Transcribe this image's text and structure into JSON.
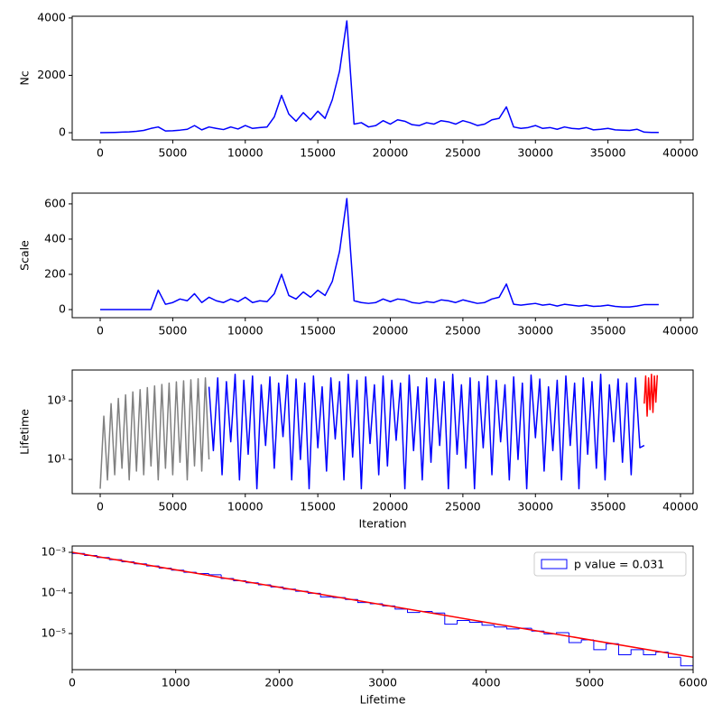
{
  "chart_data": [
    {
      "type": "line",
      "ylabel": "Nc",
      "xlim": [
        -1930,
        40870
      ],
      "ylim": [
        -250,
        4060
      ],
      "xticks": [
        0,
        5000,
        10000,
        15000,
        20000,
        25000,
        30000,
        35000,
        40000
      ],
      "yticks": [
        0,
        2000,
        4000
      ],
      "series": [
        {
          "color": "#0000ff",
          "x": [
            0,
            500,
            1000,
            1500,
            2000,
            2500,
            3000,
            3500,
            4000,
            4500,
            5000,
            5500,
            6000,
            6500,
            7000,
            7500,
            8000,
            8500,
            9000,
            9500,
            10000,
            10500,
            11000,
            11500,
            12000,
            12500,
            13000,
            13500,
            14000,
            14500,
            15000,
            15500,
            16000,
            16500,
            17000,
            17500,
            18000,
            18500,
            19000,
            19500,
            20000,
            20500,
            21000,
            21500,
            22000,
            22500,
            23000,
            23500,
            24000,
            24500,
            25000,
            25500,
            26000,
            26500,
            27000,
            27500,
            28000,
            28500,
            29000,
            29500,
            30000,
            30500,
            31000,
            31500,
            32000,
            32500,
            33000,
            33500,
            34000,
            34500,
            35000,
            35500,
            36000,
            36500,
            37000,
            37500,
            38000,
            38500
          ],
          "values": [
            0,
            5,
            10,
            20,
            30,
            50,
            80,
            150,
            200,
            60,
            70,
            90,
            120,
            250,
            100,
            200,
            150,
            110,
            200,
            130,
            250,
            150,
            180,
            200,
            550,
            1300,
            650,
            400,
            700,
            450,
            750,
            500,
            1150,
            2150,
            3900,
            300,
            350,
            200,
            250,
            420,
            300,
            450,
            400,
            280,
            250,
            350,
            300,
            420,
            380,
            300,
            420,
            350,
            250,
            300,
            450,
            500,
            900,
            200,
            150,
            180,
            250,
            150,
            180,
            120,
            200,
            150,
            130,
            180,
            100,
            120,
            150,
            100,
            90,
            80,
            120,
            20,
            10,
            10
          ]
        }
      ]
    },
    {
      "type": "line",
      "ylabel": "Scale",
      "xlim": [
        -1930,
        40870
      ],
      "ylim": [
        -46,
        661
      ],
      "xticks": [
        0,
        5000,
        10000,
        15000,
        20000,
        25000,
        30000,
        35000,
        40000
      ],
      "yticks": [
        0,
        200,
        400,
        600
      ],
      "series": [
        {
          "color": "#0000ff",
          "x": [
            0,
            500,
            1000,
            1500,
            2000,
            2500,
            3000,
            3500,
            4000,
            4500,
            5000,
            5500,
            6000,
            6500,
            7000,
            7500,
            8000,
            8500,
            9000,
            9500,
            10000,
            10500,
            11000,
            11500,
            12000,
            12500,
            13000,
            13500,
            14000,
            14500,
            15000,
            15500,
            16000,
            16500,
            17000,
            17500,
            18000,
            18500,
            19000,
            19500,
            20000,
            20500,
            21000,
            21500,
            22000,
            22500,
            23000,
            23500,
            24000,
            24500,
            25000,
            25500,
            26000,
            26500,
            27000,
            27500,
            28000,
            28500,
            29000,
            29500,
            30000,
            30500,
            31000,
            31500,
            32000,
            32500,
            33000,
            33500,
            34000,
            34500,
            35000,
            35500,
            36000,
            36500,
            37000,
            37500,
            38000,
            38500
          ],
          "values": [
            0,
            0,
            0,
            0,
            0,
            0,
            0,
            0,
            110,
            30,
            40,
            60,
            50,
            90,
            40,
            70,
            50,
            40,
            60,
            45,
            70,
            40,
            50,
            45,
            90,
            200,
            80,
            60,
            100,
            70,
            110,
            80,
            160,
            330,
            630,
            50,
            40,
            35,
            40,
            60,
            45,
            60,
            55,
            40,
            35,
            45,
            40,
            55,
            50,
            40,
            55,
            45,
            35,
            40,
            60,
            70,
            145,
            30,
            25,
            30,
            35,
            25,
            30,
            20,
            30,
            25,
            20,
            25,
            18,
            20,
            25,
            18,
            15,
            15,
            20,
            28,
            28,
            28
          ]
        }
      ]
    },
    {
      "type": "line",
      "ylabel": "Lifetime",
      "xlabel": "Iteration",
      "log_y": true,
      "xlim": [
        -1930,
        40870
      ],
      "ylim": [
        0.68,
        11200
      ],
      "xticks": [
        0,
        5000,
        10000,
        15000,
        20000,
        25000,
        30000,
        35000,
        40000
      ],
      "yticks": [
        {
          "value": 10,
          "label": "10¹"
        },
        {
          "value": 1000,
          "label": "10³"
        }
      ],
      "series": [
        {
          "color": "#808080",
          "x": [
            0,
            250,
            500,
            750,
            1000,
            1250,
            1500,
            1750,
            2000,
            2250,
            2500,
            2750,
            3000,
            3250,
            3500,
            3750,
            4000,
            4250,
            4500,
            4750,
            5000,
            5250,
            5500,
            5750,
            6000,
            6250,
            6500,
            6750,
            7000,
            7250,
            7500
          ],
          "values": [
            1,
            300,
            2,
            800,
            3,
            1200,
            5,
            1600,
            2,
            2000,
            4,
            2400,
            3,
            2800,
            6,
            3200,
            2,
            3600,
            5,
            4000,
            3,
            4400,
            8,
            4800,
            2,
            5200,
            6,
            5600,
            4,
            6000,
            10
          ]
        },
        {
          "color": "#0000ff",
          "x": [
            7500,
            7800,
            8100,
            8400,
            8700,
            9000,
            9300,
            9600,
            9900,
            10200,
            10500,
            10800,
            11100,
            11400,
            11700,
            12000,
            12300,
            12600,
            12900,
            13200,
            13500,
            13800,
            14100,
            14400,
            14700,
            15000,
            15300,
            15600,
            15900,
            16200,
            16500,
            16800,
            17100,
            17400,
            17700,
            18000,
            18300,
            18600,
            18900,
            19200,
            19500,
            19800,
            20100,
            20400,
            20700,
            21000,
            21300,
            21600,
            21900,
            22200,
            22500,
            22800,
            23100,
            23400,
            23700,
            24000,
            24300,
            24600,
            24900,
            25200,
            25500,
            25800,
            26100,
            26400,
            26700,
            27000,
            27300,
            27600,
            27900,
            28200,
            28500,
            28800,
            29100,
            29400,
            29700,
            30000,
            30300,
            30600,
            30900,
            31200,
            31500,
            31800,
            32100,
            32400,
            32700,
            33000,
            33300,
            33600,
            33900,
            34200,
            34500,
            34800,
            35100,
            35400,
            35700,
            36000,
            36300,
            36600,
            36900,
            37200,
            37500
          ],
          "values": [
            3000,
            20,
            6000,
            3,
            4500,
            40,
            8000,
            2,
            5000,
            15,
            7000,
            1,
            3500,
            30,
            6500,
            5,
            4000,
            60,
            7500,
            2,
            5500,
            10,
            4000,
            1,
            7000,
            25,
            3000,
            4,
            6000,
            50,
            4500,
            2,
            8000,
            12,
            5000,
            1,
            6500,
            35,
            3500,
            3,
            7000,
            6,
            5000,
            45,
            4000,
            1,
            7500,
            20,
            3000,
            2,
            6000,
            8,
            5500,
            30,
            4500,
            1,
            8000,
            15,
            3500,
            5,
            6000,
            1,
            4500,
            25,
            7000,
            3,
            5000,
            40,
            3500,
            2,
            6500,
            10,
            4000,
            1,
            7500,
            55,
            5500,
            4,
            3000,
            20,
            5000,
            2,
            7000,
            30,
            4000,
            1,
            6000,
            15,
            4500,
            5,
            8000,
            2,
            3500,
            40,
            5500,
            8,
            4000,
            3,
            6000,
            25,
            30
          ]
        },
        {
          "color": "#ff0000",
          "x": [
            37500,
            37600,
            37700,
            37800,
            37900,
            38000,
            38100,
            38200,
            38300,
            38400
          ],
          "values": [
            800,
            7000,
            300,
            6000,
            500,
            8000,
            400,
            7000,
            900,
            7500
          ]
        }
      ]
    },
    {
      "type": "histogram",
      "xlabel": "Lifetime",
      "log_y": true,
      "xlim": [
        0,
        6000
      ],
      "ylim": [
        1.29e-06,
        0.00143
      ],
      "xticks": [
        0,
        1000,
        2000,
        3000,
        4000,
        5000,
        6000
      ],
      "yticks": [
        {
          "value": 1e-05,
          "label": "10⁻⁵"
        },
        {
          "value": 0.0001,
          "label": "10⁻⁴"
        },
        {
          "value": 0.001,
          "label": "10⁻³"
        }
      ],
      "name": "p value = 0.031",
      "color": "#0000ff",
      "legend": "upper right",
      "bins": [
        0,
        120,
        240,
        360,
        480,
        600,
        720,
        840,
        960,
        1080,
        1200,
        1320,
        1440,
        1560,
        1680,
        1800,
        1920,
        2040,
        2160,
        2280,
        2400,
        2520,
        2640,
        2760,
        2880,
        3000,
        3120,
        3240,
        3360,
        3480,
        3600,
        3720,
        3840,
        3960,
        4080,
        4200,
        4320,
        4440,
        4560,
        4680,
        4800,
        4920,
        5040,
        5160,
        5280,
        5400,
        5520,
        5640,
        5760,
        5880,
        6000
      ],
      "values": [
        0.00094,
        0.000836,
        0.000743,
        0.000659,
        0.000585,
        0.000519,
        0.000461,
        0.000409,
        0.000363,
        0.000323,
        0.0003,
        0.00028,
        0.000226,
        0.0002,
        0.000178,
        0.000158,
        0.00014,
        0.000124,
        0.00011,
        9.8e-05,
        8e-05,
        7.7e-05,
        6.9e-05,
        5.8e-05,
        5.4e-05,
        4.8e-05,
        4e-05,
        3.3e-05,
        3.5e-05,
        3.2e-05,
        1.7e-05,
        2.1e-05,
        1.9e-05,
        1.6e-05,
        1.45e-05,
        1.3e-05,
        1.35e-05,
        1.15e-05,
        9.8e-06,
        1.05e-05,
        6e-06,
        7e-06,
        4e-06,
        5.6e-06,
        3e-06,
        4e-06,
        3e-06,
        3.5e-06,
        2.6e-06,
        1.6e-06
      ],
      "fit": {
        "color": "#ff0000",
        "x": [
          0,
          6000
        ],
        "values": [
          0.001,
          2.6e-06
        ]
      }
    }
  ]
}
